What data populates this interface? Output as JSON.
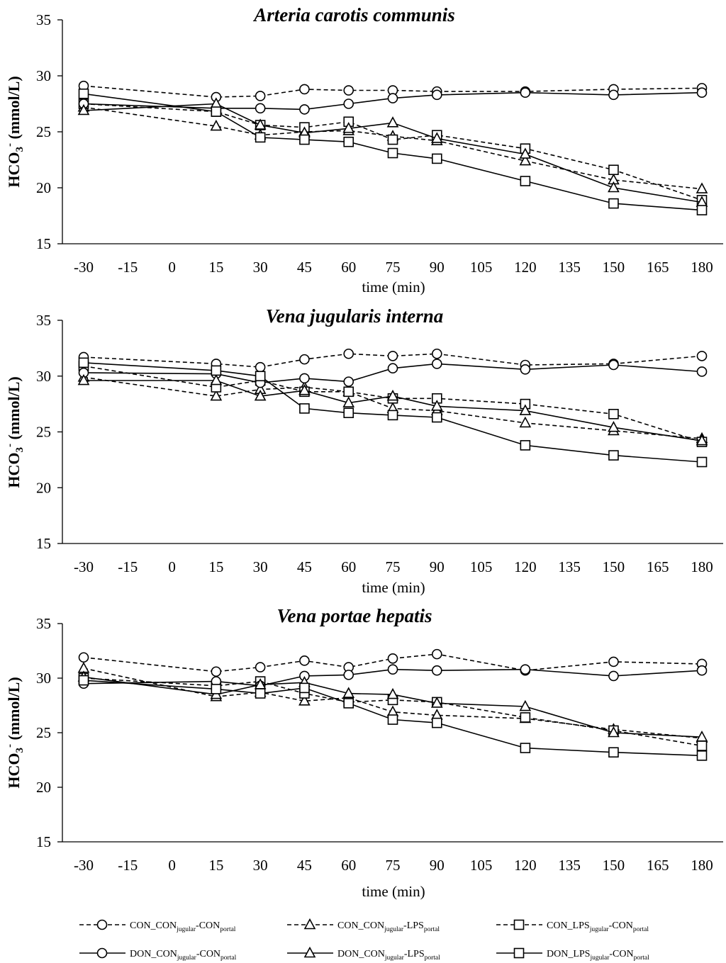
{
  "legend": [
    {
      "id": "cc_con_con",
      "prefix": "CON_CON",
      "sub1": "jugular",
      "mid": "-CON",
      "sub2": "portal",
      "marker": "circle",
      "dash": true
    },
    {
      "id": "cc_con_lps",
      "prefix": "CON_CON",
      "sub1": "jugular",
      "mid": "-LPS",
      "sub2": "portal",
      "marker": "triangle",
      "dash": true
    },
    {
      "id": "cc_lps_con",
      "prefix": "CON_LPS",
      "sub1": "jugular",
      "mid": "-CON",
      "sub2": "portal",
      "marker": "square",
      "dash": true
    },
    {
      "id": "dc_con_con",
      "prefix": "DON_CON",
      "sub1": "jugular",
      "mid": "-CON",
      "sub2": "portal",
      "marker": "circle",
      "dash": false
    },
    {
      "id": "dc_con_lps",
      "prefix": "DON_CON",
      "sub1": "jugular",
      "mid": "-LPS",
      "sub2": "portal",
      "marker": "triangle",
      "dash": false
    },
    {
      "id": "dc_lps_con",
      "prefix": "DON_LPS",
      "sub1": "jugular",
      "mid": "-CON",
      "sub2": "portal",
      "marker": "square",
      "dash": false
    }
  ],
  "chart_data": [
    {
      "type": "line",
      "title": "Arteria carotis communis",
      "xlabel": "time (min)",
      "ylabel_main": "HCO",
      "ylabel_sub": "3",
      "ylabel_sup": "-",
      "ylabel_unit": " (mmol/L)",
      "xlim": [
        -30,
        180
      ],
      "ylim": [
        15,
        35
      ],
      "xticks": [
        -30,
        -15,
        0,
        15,
        30,
        45,
        60,
        75,
        90,
        105,
        120,
        135,
        150,
        165,
        180
      ],
      "yticks": [
        15,
        20,
        25,
        30,
        35
      ],
      "x": [
        -30,
        15,
        30,
        45,
        60,
        75,
        90,
        120,
        150,
        180
      ],
      "series": [
        {
          "id": "cc_con_con",
          "values": [
            29.1,
            28.1,
            28.2,
            28.8,
            28.7,
            28.7,
            28.6,
            28.6,
            28.8,
            28.9
          ]
        },
        {
          "id": "cc_con_lps",
          "values": [
            27.2,
            25.5,
            24.7,
            25.0,
            25.1,
            24.6,
            24.2,
            22.4,
            20.7,
            19.9
          ]
        },
        {
          "id": "cc_lps_con",
          "values": [
            27.5,
            26.8,
            25.6,
            25.4,
            25.9,
            24.3,
            24.7,
            23.5,
            21.6,
            18.9
          ]
        },
        {
          "id": "dc_con_con",
          "values": [
            27.5,
            27.1,
            27.1,
            27.0,
            27.5,
            28.0,
            28.3,
            28.5,
            28.3,
            28.5
          ]
        },
        {
          "id": "dc_con_lps",
          "values": [
            26.9,
            27.5,
            25.6,
            24.9,
            25.3,
            25.8,
            24.4,
            23.0,
            20.0,
            18.7
          ]
        },
        {
          "id": "dc_lps_con",
          "values": [
            28.4,
            26.8,
            24.5,
            24.3,
            24.1,
            23.1,
            22.6,
            20.6,
            18.6,
            18.0
          ]
        }
      ]
    },
    {
      "type": "line",
      "title": "Vena jugularis interna",
      "xlabel": "time (min)",
      "ylabel_main": "HCO",
      "ylabel_sub": "3",
      "ylabel_sup": "-",
      "ylabel_unit": " (mmol/L)",
      "xlim": [
        -30,
        180
      ],
      "ylim": [
        15,
        35
      ],
      "xticks": [
        -30,
        -15,
        0,
        15,
        30,
        45,
        60,
        75,
        90,
        105,
        120,
        135,
        150,
        165,
        180
      ],
      "yticks": [
        15,
        20,
        25,
        30,
        35
      ],
      "x": [
        -30,
        15,
        30,
        45,
        60,
        75,
        90,
        120,
        150,
        180
      ],
      "series": [
        {
          "id": "cc_con_con",
          "values": [
            31.7,
            31.1,
            30.8,
            31.5,
            32.0,
            31.8,
            32.0,
            31.0,
            31.1,
            31.8
          ]
        },
        {
          "id": "cc_con_lps",
          "values": [
            29.9,
            28.2,
            28.8,
            29.0,
            28.6,
            27.1,
            26.9,
            25.8,
            25.1,
            24.4
          ]
        },
        {
          "id": "cc_lps_con",
          "values": [
            30.9,
            29.0,
            29.6,
            28.6,
            28.6,
            28.0,
            28.0,
            27.5,
            26.6,
            24.1
          ]
        },
        {
          "id": "dc_con_con",
          "values": [
            30.3,
            30.2,
            29.4,
            29.8,
            29.5,
            30.7,
            31.1,
            30.6,
            31.0,
            30.4
          ]
        },
        {
          "id": "dc_con_lps",
          "values": [
            29.6,
            29.6,
            28.2,
            28.7,
            27.6,
            28.2,
            27.3,
            26.9,
            25.4,
            24.2
          ]
        },
        {
          "id": "dc_lps_con",
          "values": [
            31.2,
            30.5,
            30.0,
            27.1,
            26.7,
            26.5,
            26.3,
            23.8,
            22.9,
            22.3
          ]
        }
      ]
    },
    {
      "type": "line",
      "title": "Vena portae hepatis",
      "xlabel": "time (min)",
      "ylabel_main": "HCO",
      "ylabel_sub": "3",
      "ylabel_sup": "-",
      "ylabel_unit": " (mmol/L)",
      "xlim": [
        -30,
        180
      ],
      "ylim": [
        15,
        35
      ],
      "xticks": [
        -30,
        -15,
        0,
        15,
        30,
        45,
        60,
        75,
        90,
        105,
        120,
        135,
        150,
        165,
        180
      ],
      "yticks": [
        15,
        20,
        25,
        30,
        35
      ],
      "x": [
        -30,
        15,
        30,
        45,
        60,
        75,
        90,
        120,
        150,
        180
      ],
      "series": [
        {
          "id": "cc_con_con",
          "values": [
            31.9,
            30.6,
            31.0,
            31.6,
            31.0,
            31.8,
            32.2,
            30.7,
            31.5,
            31.3
          ]
        },
        {
          "id": "cc_con_lps",
          "values": [
            30.9,
            28.3,
            28.7,
            27.9,
            28.2,
            26.9,
            26.6,
            26.3,
            25.3,
            24.5
          ]
        },
        {
          "id": "cc_lps_con",
          "values": [
            30.0,
            29.3,
            29.7,
            28.6,
            27.8,
            28.0,
            27.8,
            26.4,
            25.2,
            23.8
          ]
        },
        {
          "id": "dc_con_con",
          "values": [
            29.5,
            29.7,
            29.3,
            30.2,
            30.3,
            30.8,
            30.7,
            30.8,
            30.2,
            30.7
          ]
        },
        {
          "id": "dc_con_lps",
          "values": [
            30.1,
            28.5,
            29.4,
            29.6,
            28.6,
            28.5,
            27.7,
            27.4,
            25.0,
            24.6
          ]
        },
        {
          "id": "dc_lps_con",
          "values": [
            29.8,
            29.0,
            28.6,
            29.1,
            27.7,
            26.2,
            25.9,
            23.6,
            23.2,
            22.9
          ]
        }
      ]
    }
  ]
}
